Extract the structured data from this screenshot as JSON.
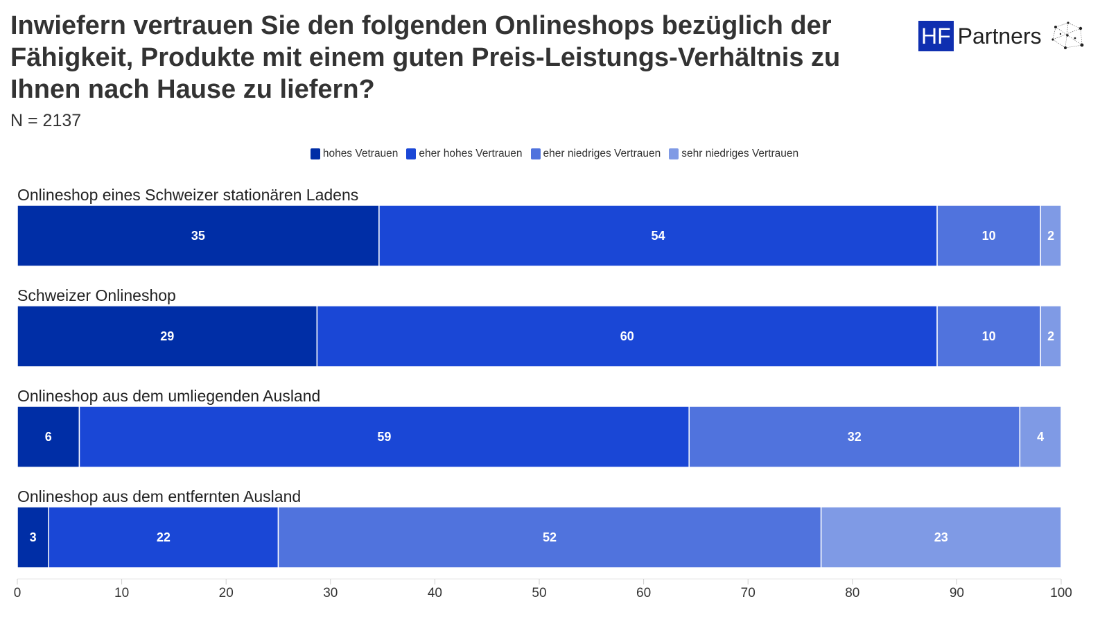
{
  "brand": {
    "logo_box": "HF",
    "logo_word": "Partners"
  },
  "colors": {
    "text": "#333333",
    "series": [
      "#002ea6",
      "#1a47d6",
      "#5073dd",
      "#7f9ae5"
    ]
  },
  "chart_data": {
    "type": "bar",
    "orientation": "horizontal",
    "stacked": true,
    "title": "Inwiefern vertrauen Sie den folgenden Onlineshops bezüglich der Fähigkeit, Produkte mit einem guten Preis-Leistungs-Verhältnis zu Ihnen nach Hause zu liefern?",
    "subtitle": "N = 2137",
    "categories": [
      "Onlineshop eines Schweizer stationären Ladens",
      "Schweizer Onlineshop",
      "Onlineshop aus dem umliegenden Ausland",
      "Onlineshop aus dem entfernten Ausland"
    ],
    "series": [
      {
        "name": "hohes Vetrauen",
        "color": "#002ea6",
        "values": [
          35,
          29,
          6,
          3
        ]
      },
      {
        "name": "eher hohes Vertrauen",
        "color": "#1a47d6",
        "values": [
          54,
          60,
          59,
          22
        ]
      },
      {
        "name": "eher niedriges Vertrauen",
        "color": "#5073dd",
        "values": [
          10,
          10,
          32,
          52
        ]
      },
      {
        "name": "sehr niedriges Vertrauen",
        "color": "#7f9ae5",
        "values": [
          2,
          2,
          4,
          23
        ]
      }
    ],
    "xlim": [
      0,
      100
    ],
    "xticks": [
      0,
      10,
      20,
      30,
      40,
      50,
      60,
      70,
      80,
      90,
      100
    ],
    "legend_position": "top-center",
    "grid": false
  }
}
